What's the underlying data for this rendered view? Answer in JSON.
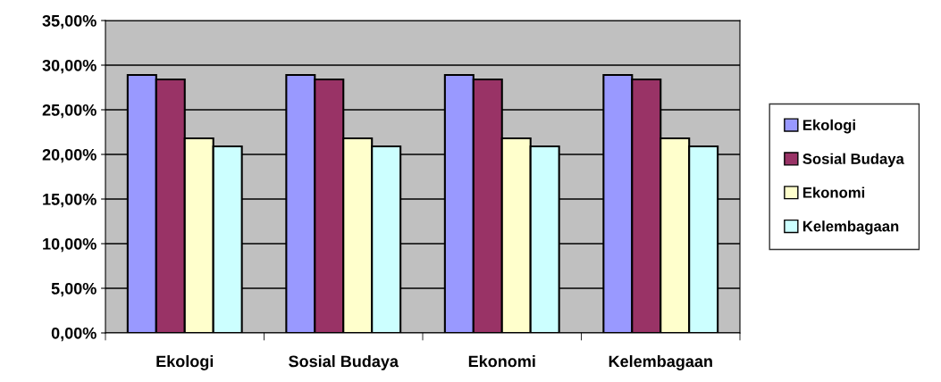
{
  "chart_data": {
    "type": "bar",
    "categories": [
      "Ekologi",
      "Sosial Budaya",
      "Ekonomi",
      "Kelembagaan"
    ],
    "series": [
      {
        "name": "Ekologi",
        "color": "#9999ff",
        "values": [
          28.9,
          28.9,
          28.9,
          28.9
        ]
      },
      {
        "name": "Sosial Budaya",
        "color": "#993366",
        "values": [
          28.4,
          28.4,
          28.4,
          28.4
        ]
      },
      {
        "name": "Ekonomi",
        "color": "#ffffcc",
        "values": [
          21.8,
          21.8,
          21.8,
          21.8
        ]
      },
      {
        "name": "Kelembagaan",
        "color": "#ccffff",
        "values": [
          20.9,
          20.9,
          20.9,
          20.9
        ]
      }
    ],
    "ylim": [
      0,
      35
    ],
    "yticks": [
      {
        "value": 0,
        "label": "0,00%"
      },
      {
        "value": 5,
        "label": "5,00%"
      },
      {
        "value": 10,
        "label": "10,00%"
      },
      {
        "value": 15,
        "label": "15,00%"
      },
      {
        "value": 20,
        "label": "20,00%"
      },
      {
        "value": 25,
        "label": "25,00%"
      },
      {
        "value": 30,
        "label": "30,00%"
      },
      {
        "value": 35,
        "label": "35,00%"
      }
    ],
    "grid": "y",
    "legend": "right"
  }
}
